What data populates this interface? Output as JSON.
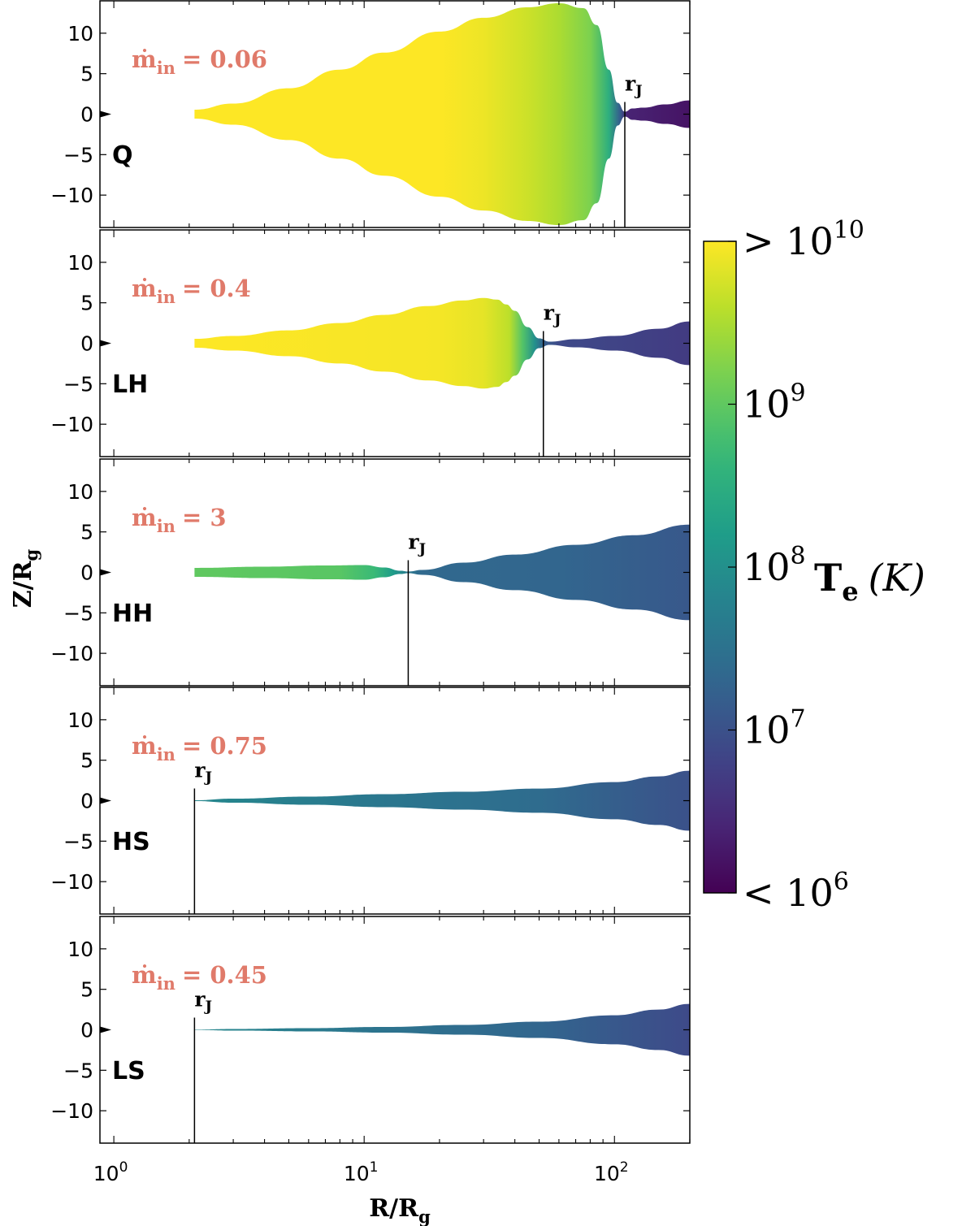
{
  "chart_data": {
    "type": "area",
    "xscale": "log",
    "xlim": [
      0.88,
      200
    ],
    "ylim": [
      -14,
      14
    ],
    "xlabel_main": "R/R",
    "xlabel_sub": "g",
    "ylabel_main": "Z/R",
    "ylabel_sub": "g",
    "x_tick_labels": [
      {
        "base": "10",
        "exp": "0",
        "value": 1
      },
      {
        "base": "10",
        "exp": "1",
        "value": 10
      },
      {
        "base": "10",
        "exp": "2",
        "value": 100
      }
    ],
    "y_ticks": [
      10,
      5,
      0,
      -5,
      -10
    ],
    "y_tick_labels": [
      "10",
      "5",
      "0",
      "−5",
      "−10"
    ],
    "colorbar": {
      "label_main": "T",
      "label_sub": "e",
      "label_unit": "(K)",
      "scale": "log",
      "range_log10": [
        6,
        10
      ],
      "ticks": [
        {
          "prefix": "> ",
          "base": "10",
          "exp": "10",
          "log10": 10
        },
        {
          "prefix": "",
          "base": "10",
          "exp": "9",
          "log10": 9
        },
        {
          "prefix": "",
          "base": "10",
          "exp": "8",
          "log10": 8
        },
        {
          "prefix": "",
          "base": "10",
          "exp": "7",
          "log10": 7
        },
        {
          "prefix": "< ",
          "base": "10",
          "exp": "6",
          "log10": 6
        }
      ]
    },
    "panels": [
      {
        "state": "Q",
        "mdot_label": "ṁ",
        "mdot_sub": "in",
        "mdot_value": "= 0.06",
        "r_J": 110,
        "rj_text": "r",
        "rj_sub": "J",
        "profile": [
          [
            2.1,
            0.55
          ],
          [
            3,
            1.3
          ],
          [
            5,
            3.2
          ],
          [
            8,
            5.5
          ],
          [
            12,
            7.6
          ],
          [
            20,
            10.2
          ],
          [
            30,
            11.9
          ],
          [
            45,
            13.2
          ],
          [
            60,
            13.7
          ],
          [
            75,
            13.1
          ],
          [
            85,
            11.0
          ],
          [
            95,
            5.5
          ],
          [
            103,
            1.4
          ],
          [
            110,
            0.3
          ],
          [
            118,
            0.7
          ],
          [
            130,
            0.8
          ],
          [
            160,
            1.2
          ],
          [
            200,
            1.7
          ]
        ],
        "temp_log10": [
          [
            2.1,
            10.2
          ],
          [
            20,
            10.0
          ],
          [
            30,
            9.9
          ],
          [
            45,
            9.7
          ],
          [
            60,
            9.5
          ],
          [
            80,
            9.2
          ],
          [
            95,
            8.5
          ],
          [
            105,
            7.2
          ],
          [
            112,
            6.4
          ],
          [
            200,
            6.2
          ]
        ]
      },
      {
        "state": "LH",
        "mdot_label": "ṁ",
        "mdot_sub": "in",
        "mdot_value": "= 0.4",
        "r_J": 52,
        "rj_text": "r",
        "rj_sub": "J",
        "profile": [
          [
            2.1,
            0.55
          ],
          [
            3,
            0.9
          ],
          [
            5,
            1.6
          ],
          [
            8,
            2.5
          ],
          [
            12,
            3.5
          ],
          [
            18,
            4.6
          ],
          [
            25,
            5.3
          ],
          [
            30,
            5.6
          ],
          [
            34,
            5.4
          ],
          [
            37,
            4.8
          ],
          [
            40,
            4.0
          ],
          [
            45,
            2.0
          ],
          [
            50,
            0.6
          ],
          [
            55,
            0.2
          ],
          [
            70,
            0.5
          ],
          [
            100,
            0.9
          ],
          [
            150,
            1.8
          ],
          [
            200,
            2.7
          ]
        ],
        "temp_log10": [
          [
            2.1,
            10.05
          ],
          [
            20,
            9.95
          ],
          [
            30,
            9.85
          ],
          [
            38,
            9.6
          ],
          [
            43,
            8.9
          ],
          [
            48,
            8.0
          ],
          [
            52,
            7.2
          ],
          [
            60,
            6.9
          ],
          [
            200,
            6.7
          ]
        ]
      },
      {
        "state": "HH",
        "mdot_label": "ṁ",
        "mdot_sub": "in",
        "mdot_value": "= 3",
        "r_J": 15,
        "rj_text": "r",
        "rj_sub": "J",
        "profile": [
          [
            2.1,
            0.55
          ],
          [
            4,
            0.7
          ],
          [
            7,
            0.85
          ],
          [
            10,
            0.9
          ],
          [
            12,
            0.6
          ],
          [
            14,
            0.2
          ],
          [
            15,
            0.1
          ],
          [
            17,
            0.3
          ],
          [
            25,
            1.2
          ],
          [
            40,
            2.2
          ],
          [
            70,
            3.4
          ],
          [
            120,
            4.6
          ],
          [
            200,
            5.9
          ]
        ],
        "temp_log10": [
          [
            2.1,
            9.0
          ],
          [
            8,
            8.95
          ],
          [
            11,
            8.7
          ],
          [
            13,
            8.2
          ],
          [
            15,
            7.6
          ],
          [
            17,
            7.35
          ],
          [
            60,
            7.3
          ],
          [
            200,
            7.1
          ]
        ]
      },
      {
        "state": "HS",
        "mdot_label": "ṁ",
        "mdot_sub": "in",
        "mdot_value": "= 0.75",
        "r_J": 2.1,
        "rj_text": "r",
        "rj_sub": "J",
        "profile": [
          [
            2.1,
            0.05
          ],
          [
            3,
            0.25
          ],
          [
            6,
            0.5
          ],
          [
            12,
            0.8
          ],
          [
            25,
            1.1
          ],
          [
            50,
            1.5
          ],
          [
            100,
            2.3
          ],
          [
            150,
            3.0
          ],
          [
            200,
            3.7
          ]
        ],
        "temp_log10": [
          [
            2.1,
            7.85
          ],
          [
            10,
            7.6
          ],
          [
            50,
            7.4
          ],
          [
            200,
            7.0
          ]
        ]
      },
      {
        "state": "LS",
        "mdot_label": "ṁ",
        "mdot_sub": "in",
        "mdot_value": "= 0.45",
        "r_J": 2.1,
        "rj_text": "r",
        "rj_sub": "J",
        "profile": [
          [
            2.1,
            0.02
          ],
          [
            3,
            0.1
          ],
          [
            6,
            0.2
          ],
          [
            12,
            0.35
          ],
          [
            25,
            0.6
          ],
          [
            50,
            1.0
          ],
          [
            100,
            1.8
          ],
          [
            150,
            2.5
          ],
          [
            200,
            3.2
          ]
        ],
        "temp_log10": [
          [
            2.1,
            7.85
          ],
          [
            10,
            7.55
          ],
          [
            50,
            7.3
          ],
          [
            200,
            6.9
          ]
        ]
      }
    ]
  }
}
